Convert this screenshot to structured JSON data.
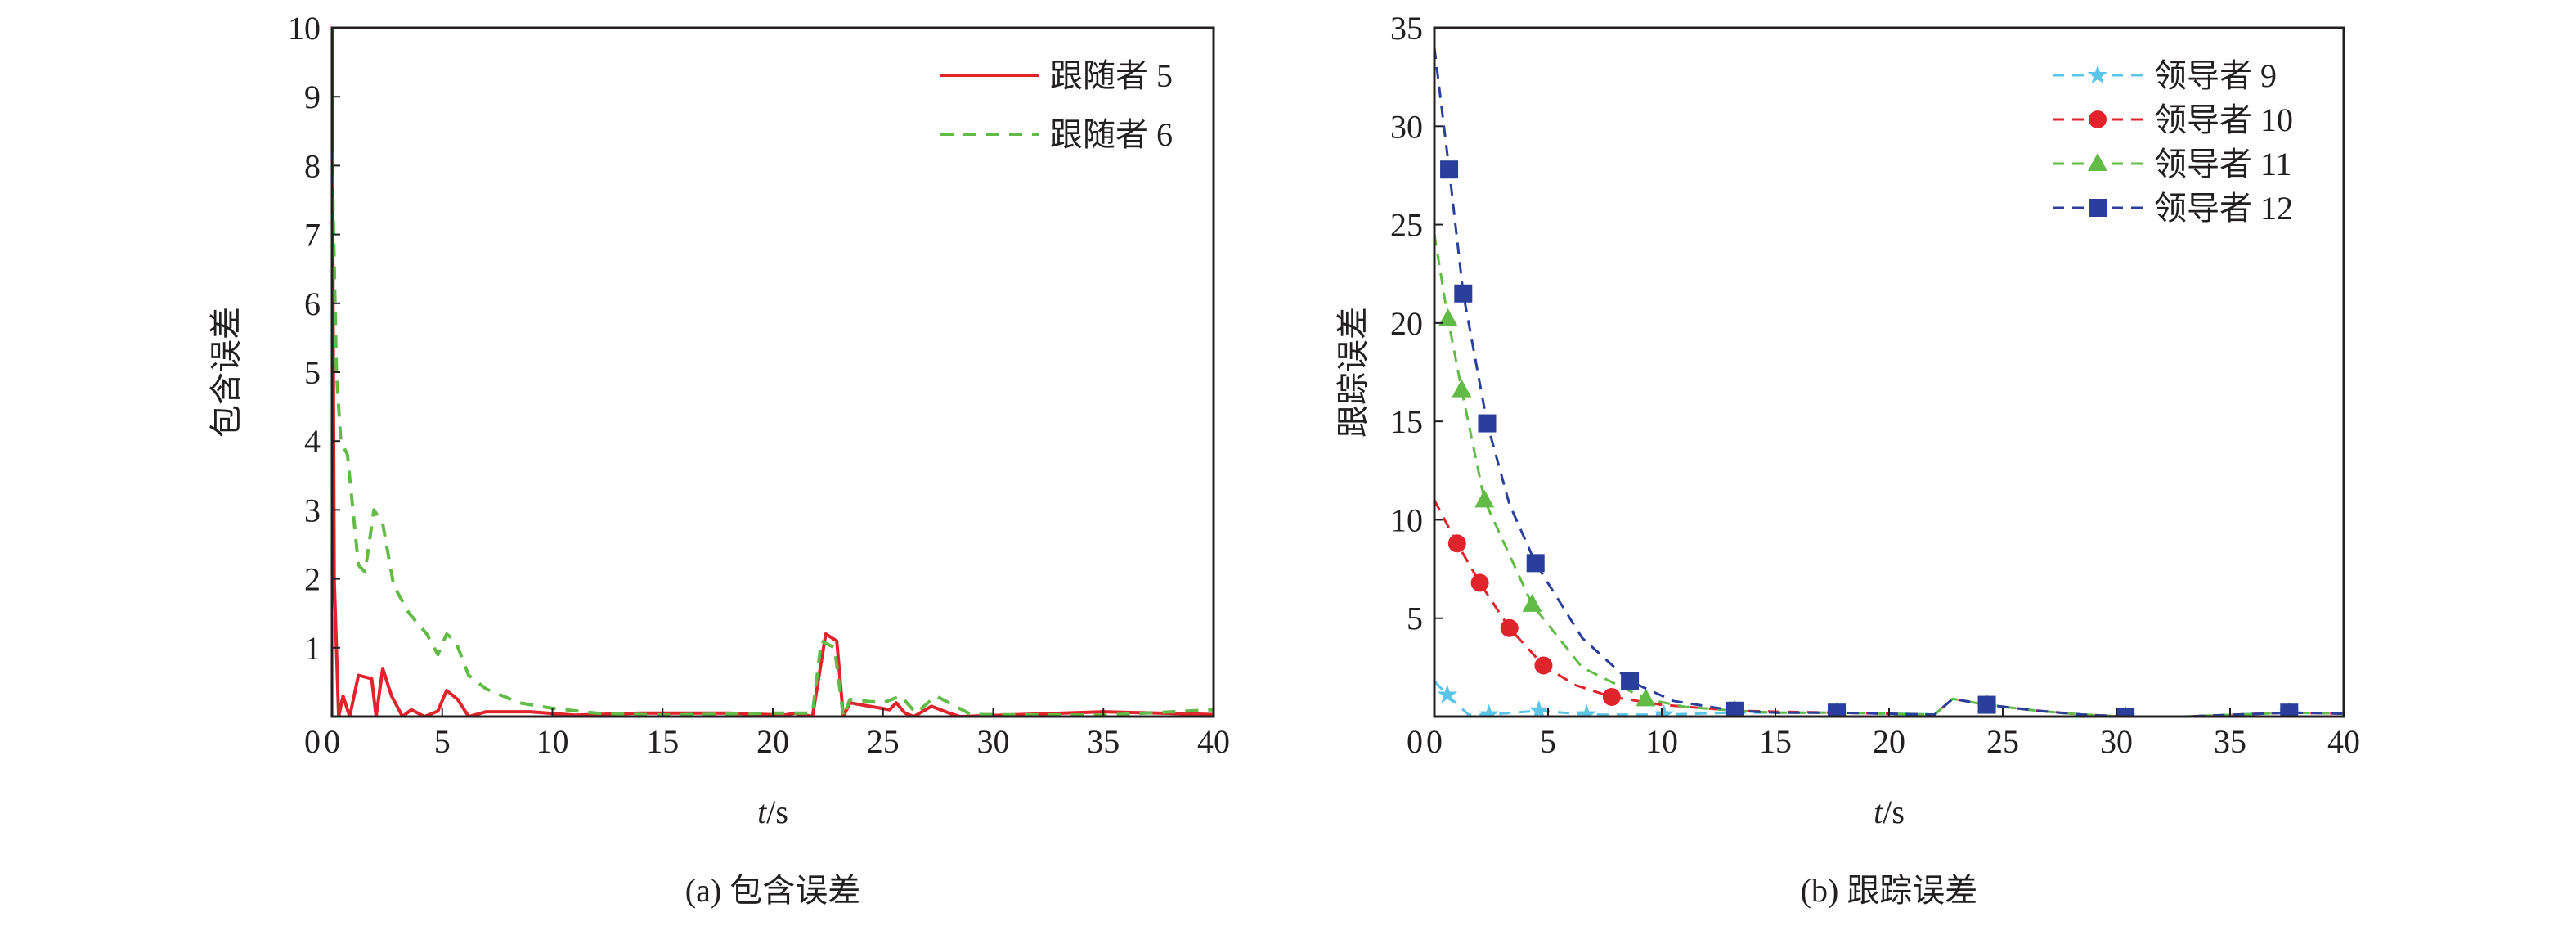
{
  "chart_data": [
    {
      "type": "line",
      "caption": "(a) 包含误差",
      "xlabel_italic": "t",
      "xlabel_unit": "/s",
      "ylabel": "包含误差",
      "xlim": [
        0,
        40
      ],
      "ylim": [
        0,
        10
      ],
      "xticks": [
        0,
        5,
        10,
        15,
        20,
        25,
        30,
        35,
        40
      ],
      "yticks": [
        1,
        2,
        3,
        4,
        5,
        6,
        7,
        8,
        9,
        10
      ],
      "grid": false,
      "legend_position": "top-right",
      "series": [
        {
          "name": "跟随者 5",
          "color": "#e0242b",
          "dash": "solid",
          "x": [
            0,
            0.1,
            0.3,
            0.5,
            0.8,
            1.2,
            1.8,
            2.0,
            2.3,
            2.7,
            3.2,
            3.6,
            4.2,
            4.8,
            5.2,
            5.7,
            6.2,
            7,
            9,
            11,
            14,
            18,
            20.5,
            21,
            21.8,
            22.4,
            22.9,
            23.2,
            23.5,
            25.3,
            25.6,
            26,
            26.4,
            27.2,
            28,
            28.5,
            35,
            40
          ],
          "y": [
            10,
            2,
            0,
            0.3,
            0,
            0.6,
            0.55,
            0,
            0.7,
            0.3,
            0,
            0.1,
            0,
            0.08,
            0.38,
            0.25,
            0,
            0.07,
            0.07,
            0.02,
            0.05,
            0.05,
            0.02,
            0.05,
            0,
            1.2,
            1.1,
            0,
            0.2,
            0.1,
            0.2,
            0.05,
            0,
            0.15,
            0.05,
            0,
            0.07,
            0.03
          ]
        },
        {
          "name": "跟随者 6",
          "color": "#62bb46",
          "dash": "dashed",
          "x": [
            0,
            0.2,
            0.4,
            0.7,
            1.2,
            1.5,
            1.9,
            2.3,
            2.8,
            3.5,
            4.3,
            4.8,
            5.2,
            5.6,
            6.2,
            7,
            8.5,
            10,
            12,
            15,
            20,
            21.8,
            22.2,
            22.8,
            23.2,
            23.5,
            25,
            25.8,
            26.5,
            27.4,
            29,
            35,
            40
          ],
          "y": [
            8.2,
            5,
            4,
            3.8,
            2.2,
            2.1,
            3,
            2.8,
            1.9,
            1.5,
            1.2,
            0.9,
            1.2,
            1.1,
            0.6,
            0.4,
            0.2,
            0.12,
            0.05,
            0.02,
            0.05,
            0.05,
            1.1,
            1.0,
            0,
            0.25,
            0.2,
            0.3,
            0.05,
            0.3,
            0.03,
            0.02,
            0.1
          ]
        }
      ]
    },
    {
      "type": "line",
      "caption": "(b) 跟踪误差",
      "xlabel_italic": "t",
      "xlabel_unit": "/s",
      "ylabel": "跟踪误差",
      "xlim": [
        0,
        40
      ],
      "ylim": [
        0,
        35
      ],
      "xticks": [
        0,
        5,
        10,
        15,
        20,
        25,
        30,
        35,
        40
      ],
      "yticks": [
        5,
        10,
        15,
        20,
        25,
        30,
        35
      ],
      "grid": false,
      "legend_position": "top-right",
      "series": [
        {
          "name": "领导者 9",
          "color": "#5bc5e8",
          "marker": "star",
          "x": [
            0,
            0.57,
            1.5,
            2.4,
            4.6,
            6.7,
            10.1,
            13.2,
            15,
            17.7,
            22,
            22.8,
            24.3,
            26.5,
            28.5,
            30.4,
            33,
            37.6,
            40
          ],
          "y": [
            1.8,
            1.1,
            0.1,
            0.1,
            0.3,
            0.1,
            0.1,
            0.2,
            0.2,
            0.2,
            0.1,
            0.9,
            0.6,
            0.3,
            0.1,
            0,
            0,
            0.2,
            0.15
          ],
          "markers_x": [
            0.57,
            2.4,
            4.6,
            6.7,
            10.1,
            13.2,
            17.7,
            24.3,
            30.4,
            37.6
          ],
          "markers_y": [
            1.1,
            0.1,
            0.3,
            0.1,
            0.1,
            0.2,
            0.2,
            0.6,
            0,
            0.2
          ]
        },
        {
          "name": "领导者 10",
          "color": "#e0242b",
          "marker": "circle",
          "x": [
            0,
            1.0,
            2.0,
            3.3,
            4.8,
            6.2,
            7.8,
            10,
            13.2,
            15,
            17.7,
            22,
            22.8,
            24.3,
            26.5,
            28.5,
            30.4,
            33,
            37.6,
            40
          ],
          "y": [
            11,
            8.8,
            6.8,
            4.5,
            2.6,
            1.6,
            1.0,
            0.6,
            0.3,
            0.25,
            0.2,
            0.1,
            0.9,
            0.6,
            0.3,
            0.1,
            0,
            0,
            0.2,
            0.15
          ],
          "markers_x": [
            1.0,
            2.0,
            3.3,
            4.8,
            7.8,
            13.2,
            17.7,
            24.3,
            30.4,
            37.6
          ],
          "markers_y": [
            8.8,
            6.8,
            4.5,
            2.6,
            1.0,
            0.3,
            0.2,
            0.6,
            0,
            0.2
          ]
        },
        {
          "name": "领导者 11",
          "color": "#62bb46",
          "marker": "triangle",
          "x": [
            0,
            0.6,
            1.2,
            2.2,
            4.3,
            6.5,
            9.3,
            11,
            13.2,
            15,
            17.7,
            22,
            22.8,
            24.3,
            26.5,
            28.5,
            30.4,
            33,
            37.6,
            40
          ],
          "y": [
            24.5,
            20.2,
            16.6,
            11,
            5.7,
            2.5,
            0.9,
            0.5,
            0.3,
            0.2,
            0.2,
            0.1,
            0.9,
            0.6,
            0.3,
            0.1,
            0,
            0,
            0.2,
            0.15
          ],
          "markers_x": [
            0.6,
            1.2,
            2.2,
            4.3,
            9.3,
            13.2,
            17.7,
            24.3,
            30.4,
            37.6
          ],
          "markers_y": [
            20.2,
            16.6,
            11,
            5.7,
            0.9,
            0.3,
            0.2,
            0.6,
            0,
            0.2
          ]
        },
        {
          "name": "领导者 12",
          "color": "#2a3f9b",
          "marker": "square",
          "x": [
            0,
            0.65,
            1.27,
            2.32,
            3.3,
            4.45,
            6.5,
            8.6,
            10.5,
            13.2,
            15,
            17.7,
            22,
            22.8,
            24.3,
            26.5,
            28.5,
            30.4,
            33,
            37.6,
            40
          ],
          "y": [
            34,
            27.8,
            21.5,
            14.9,
            10.8,
            7.8,
            4.0,
            1.8,
            0.8,
            0.3,
            0.2,
            0.2,
            0.1,
            0.9,
            0.6,
            0.3,
            0.1,
            0,
            0,
            0.2,
            0.15
          ],
          "markers_x": [
            0.65,
            1.27,
            2.32,
            4.45,
            8.6,
            13.2,
            17.7,
            24.3,
            30.4,
            37.6
          ],
          "markers_y": [
            27.8,
            21.5,
            14.9,
            7.8,
            1.8,
            0.3,
            0.2,
            0.6,
            0,
            0.2
          ]
        }
      ]
    }
  ]
}
